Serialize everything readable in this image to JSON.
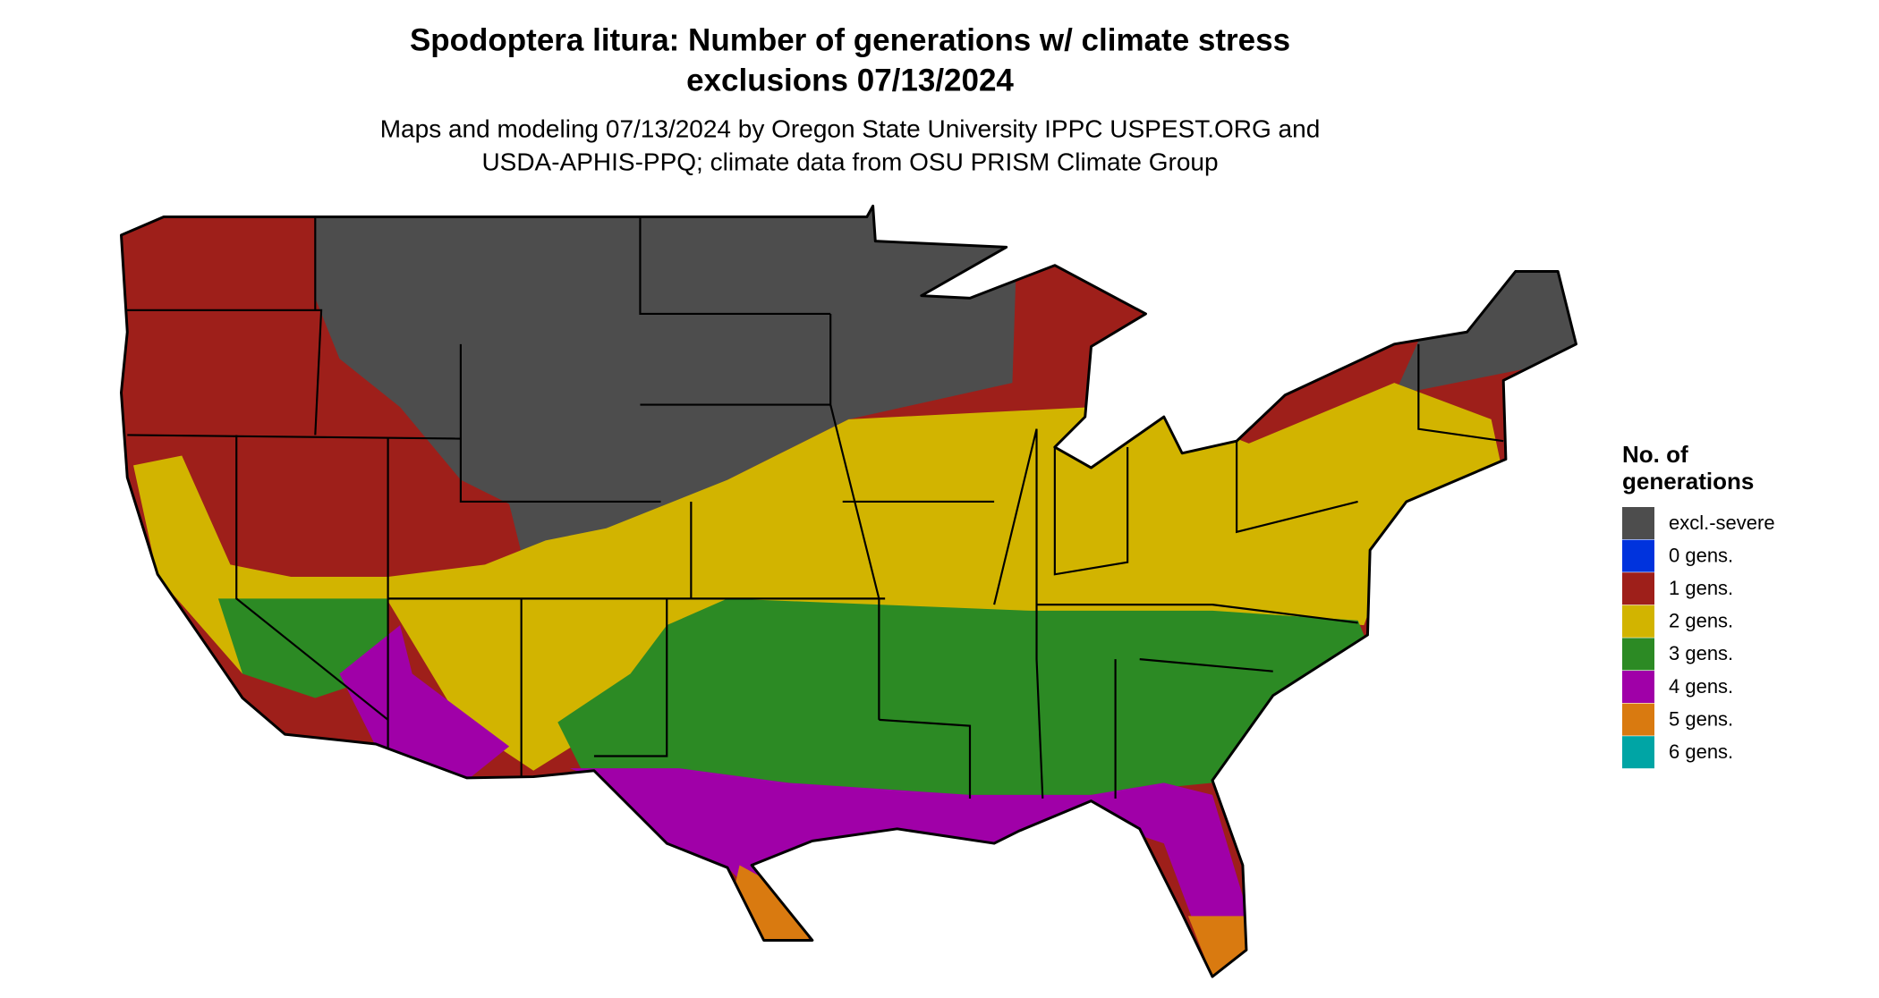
{
  "title": [
    "Spodoptera litura: Number of generations w/ climate stress",
    "exclusions 07/13/2024"
  ],
  "subtitle": [
    "Maps and modeling 07/13/2024 by Oregon State University IPPC USPEST.ORG and",
    "USDA-APHIS-PPQ; climate data from OSU PRISM Climate Group"
  ],
  "legend": {
    "title": [
      "No. of",
      "generations"
    ],
    "items": [
      {
        "label": "excl.-severe",
        "color": "#4d4d4d"
      },
      {
        "label": "0 gens.",
        "color": "#0033dd"
      },
      {
        "label": "1 gens.",
        "color": "#9e1f1a"
      },
      {
        "label": "2 gens.",
        "color": "#d2b400"
      },
      {
        "label": "3 gens.",
        "color": "#2c8a24"
      },
      {
        "label": "4 gens.",
        "color": "#a000a8"
      },
      {
        "label": "5 gens.",
        "color": "#d97a10"
      },
      {
        "label": "6 gens.",
        "color": "#00a5a5"
      }
    ]
  }
}
